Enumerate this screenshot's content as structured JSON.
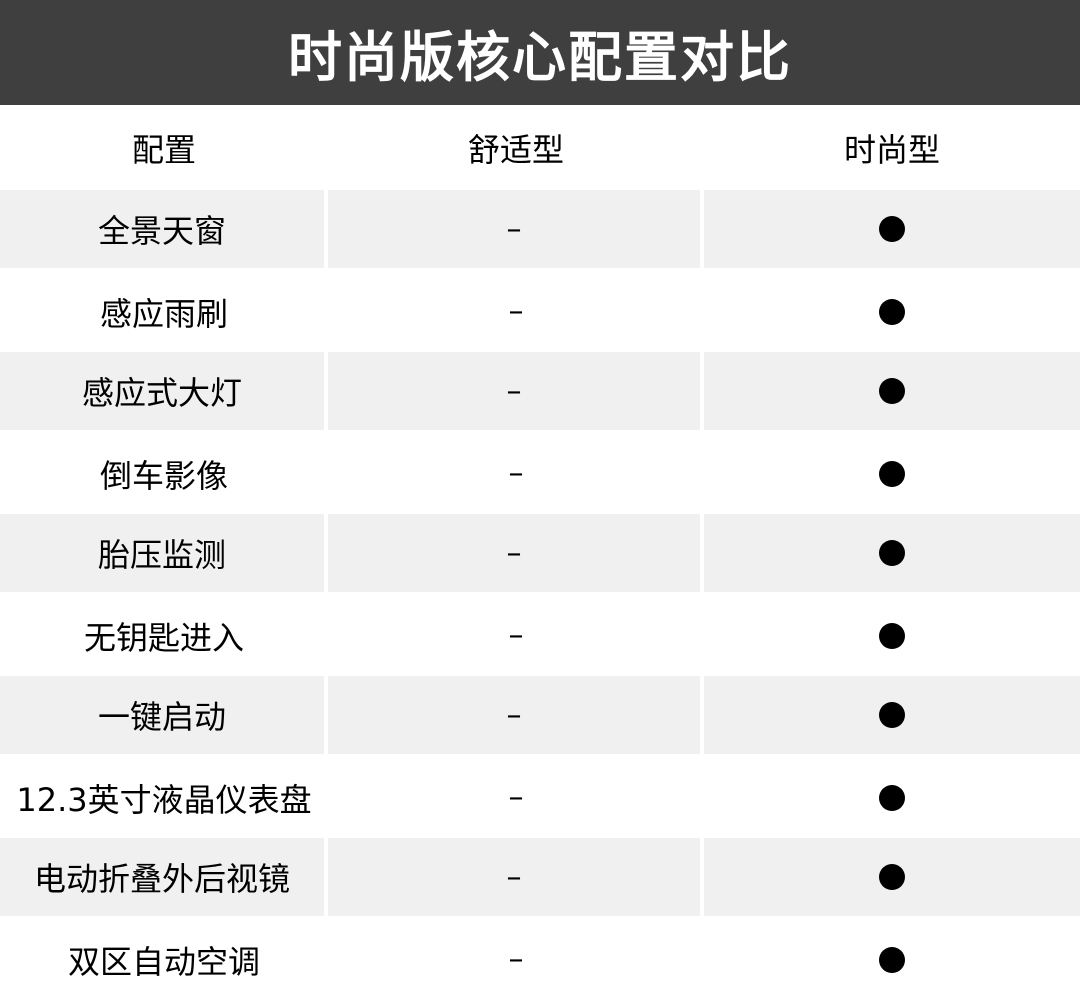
{
  "title": "时尚版核心配置对比",
  "headers": [
    "配置",
    "舒适型",
    "时尚型"
  ],
  "rows": [
    {
      "feature": "全景天窗",
      "comfort": "–",
      "fashion": "●"
    },
    {
      "feature": "感应雨刷",
      "comfort": "–",
      "fashion": "●"
    },
    {
      "feature": "感应式大灯",
      "comfort": "–",
      "fashion": "●"
    },
    {
      "feature": "倒车影像",
      "comfort": "–",
      "fashion": "●"
    },
    {
      "feature": "胎压监测",
      "comfort": "–",
      "fashion": "●"
    },
    {
      "feature": "无钥匙进入",
      "comfort": "–",
      "fashion": "●"
    },
    {
      "feature": "一键启动",
      "comfort": "–",
      "fashion": "●"
    },
    {
      "feature": "12.3英寸液晶仪表盘",
      "comfort": "–",
      "fashion": "●"
    },
    {
      "feature": "电动折叠外后视镜",
      "comfort": "–",
      "fashion": "●"
    },
    {
      "feature": "双区自动空调",
      "comfort": "–",
      "fashion": "●"
    }
  ],
  "colors": {
    "title_bg": "#3f3f3f",
    "stripe": "#f0f0f0"
  }
}
